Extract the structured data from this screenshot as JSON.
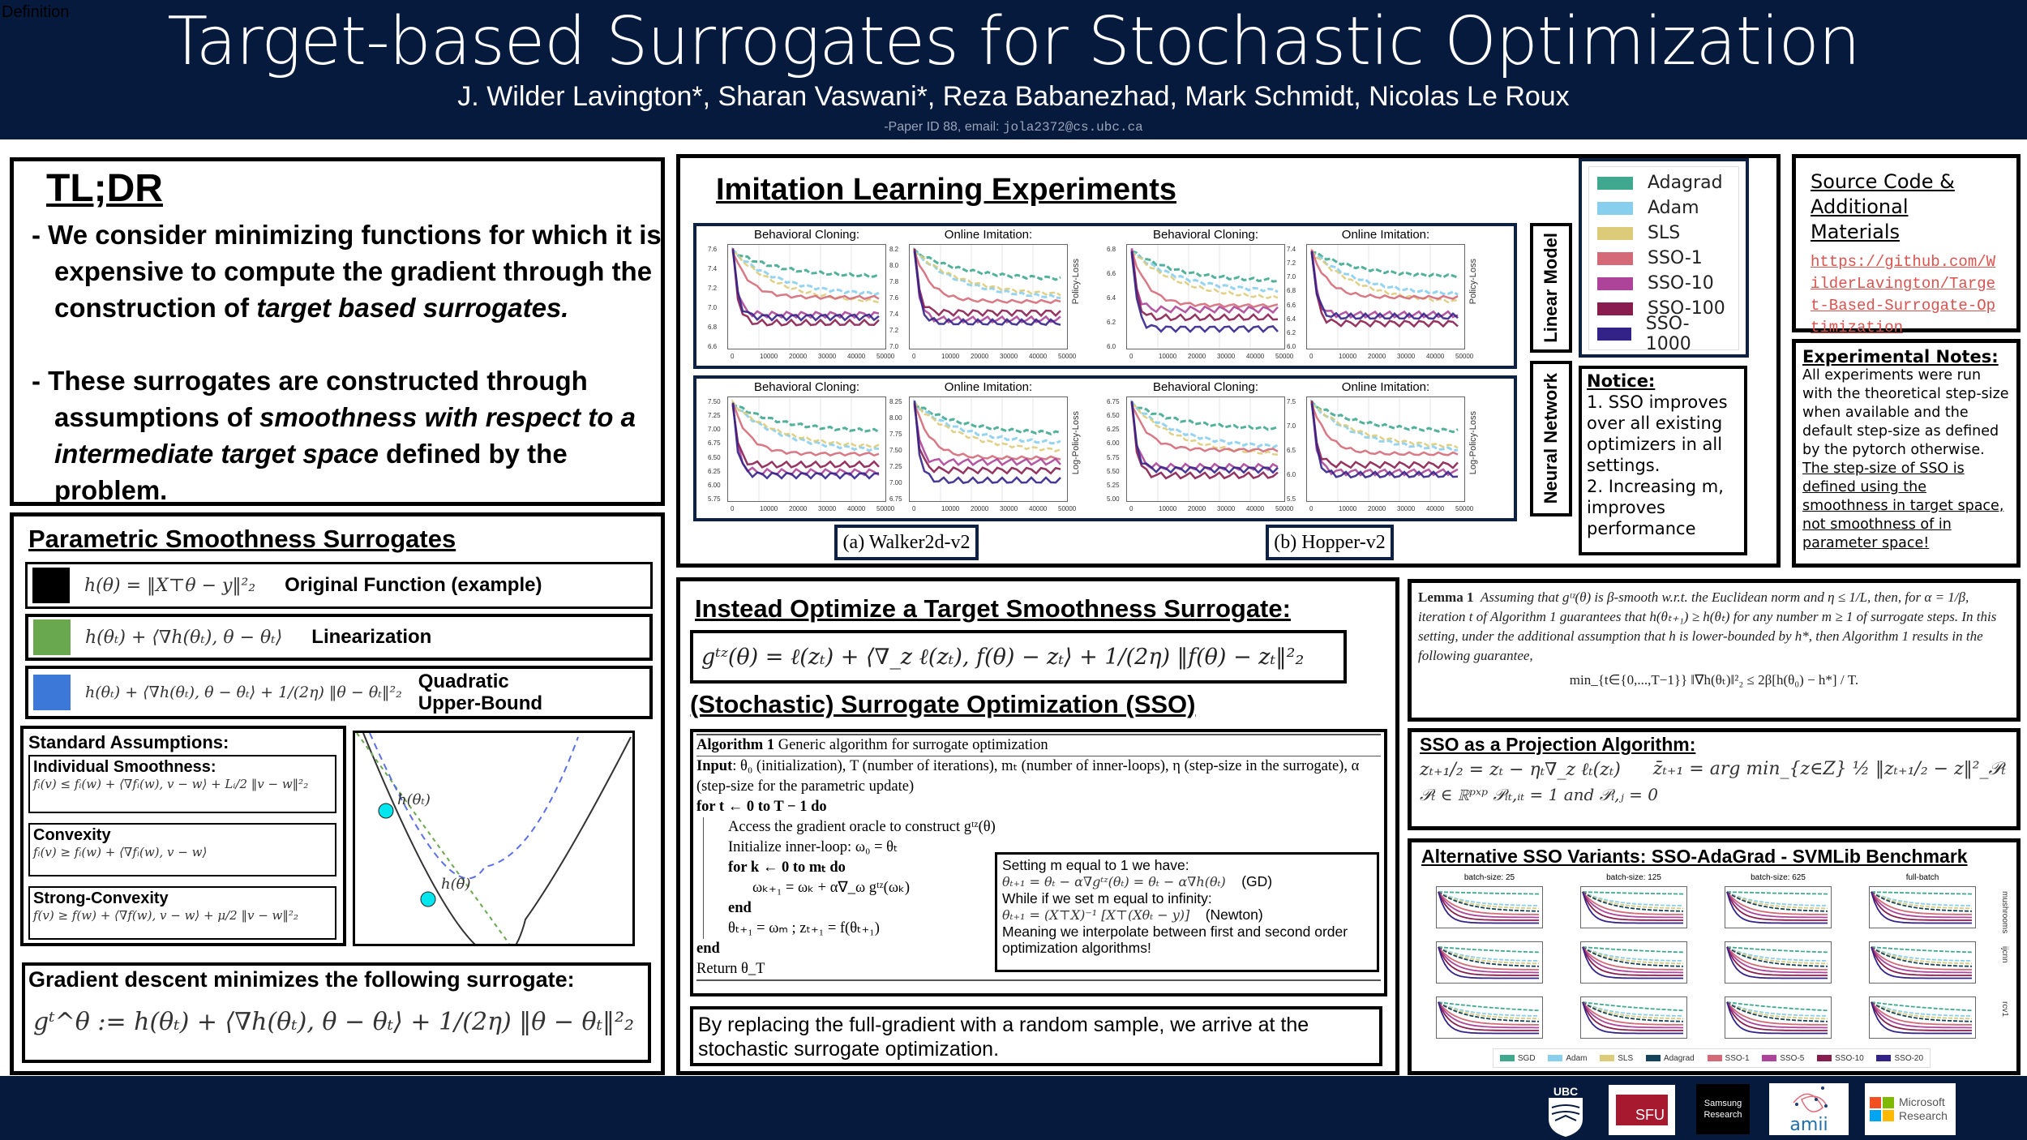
{
  "header": {
    "corner_label": "Definition",
    "title": "Target-based Surrogates for Stochastic Optimization",
    "authors": "J. Wilder Lavington*, Sharan Vaswani*, Reza Babanezhad, Mark Schmidt, Nicolas Le Roux",
    "paper_id": "-Paper ID 88, email: ",
    "email": "jola2372@cs.ubc.ca"
  },
  "tldr": {
    "title": "TL;DR",
    "bullet1_a": "We consider minimizing functions for which it is expensive to compute the gradient through the construction of ",
    "bullet1_b": "target based surrogates.",
    "bullet2_a": "These surrogates are constructed through assumptions of ",
    "bullet2_b": "smoothness with respect to a intermediate target space",
    "bullet2_c": " defined by the problem."
  },
  "parametric": {
    "title": "Parametric Smoothness Surrogates",
    "rows": [
      {
        "formula": "h(θ) = ‖X⊤θ − y‖²₂",
        "label": "Original Function (example)",
        "color": "#000000"
      },
      {
        "formula": "h(θₜ) + ⟨∇h(θₜ), θ − θₜ⟩",
        "label": "Linearization",
        "color": "#6aa84f"
      },
      {
        "formula": "h(θₜ) + ⟨∇h(θₜ), θ − θₜ⟩ + 1/(2η) ‖θ − θₜ‖²₂",
        "label": "Quadratic Upper-Bound",
        "color": "#3c78d8"
      }
    ],
    "assumptions_title": "Standard Assumptions:",
    "assumptions": [
      {
        "name": "Individual Smoothness:",
        "formula": "fᵢ(v) ≤ fᵢ(w) + ⟨∇fᵢ(w), v − w⟩ + Lᵢ/2 ‖v − w‖²₂"
      },
      {
        "name": "Convexity",
        "formula": "fᵢ(v) ≥ fᵢ(w) + ⟨∇fᵢ(w), v − w⟩"
      },
      {
        "name": "Strong-Convexity",
        "formula": "f(v) ≥ f(w) + ⟨∇f(w), v − w⟩ + μ/2 ‖v − w‖²₂"
      }
    ],
    "plot_labels": {
      "point_t": "h(θₜ)",
      "point": "h(θ)"
    },
    "gd_title": "Gradient descent minimizes the following surrogate:",
    "gd_formula": "gᵗ^θ := h(θₜ) + ⟨∇h(θₜ), θ − θₜ⟩ + 1/(2η) ‖θ − θₜ‖²₂"
  },
  "imitation": {
    "title": "Imitation Learning Experiments",
    "subplot_titles": [
      "Behavioral Cloning:",
      "Online Imitation:",
      "Behavioral Cloning:",
      "Online Imitation:"
    ],
    "ylabel_linear": "Policy-Loss",
    "ylabel_nn": "Log-Policy-Loss",
    "xticks": [
      "0",
      "10000",
      "20000",
      "30000",
      "40000",
      "50000"
    ],
    "row_labels": [
      "Linear Model",
      "Neural Network"
    ],
    "captions": [
      "(a) Walker2d-v2",
      "(b) Hopper-v2"
    ],
    "yticks": [
      [
        "7.6",
        "7.4",
        "7.2",
        "7.0",
        "6.8",
        "6.6"
      ],
      [
        "8.2",
        "8.0",
        "7.8",
        "7.6",
        "7.4",
        "7.2",
        "7.0"
      ],
      [
        "6.8",
        "6.6",
        "6.4",
        "6.2",
        "6.0"
      ],
      [
        "7.4",
        "7.2",
        "7.0",
        "6.8",
        "6.6",
        "6.4",
        "6.2",
        "6.0"
      ],
      [
        "7.50",
        "7.25",
        "7.00",
        "6.75",
        "6.50",
        "6.25",
        "6.00",
        "5.75"
      ],
      [
        "8.25",
        "8.00",
        "7.75",
        "7.50",
        "7.25",
        "7.00",
        "6.75"
      ],
      [
        "6.75",
        "6.50",
        "6.25",
        "6.00",
        "5.75",
        "5.50",
        "5.25",
        "5.00"
      ],
      [
        "7.5",
        "7.0",
        "6.5",
        "6.0",
        "5.5"
      ]
    ],
    "legend": [
      {
        "name": "Adagrad",
        "color": "#3fa88f"
      },
      {
        "name": "Adam",
        "color": "#88cfee"
      },
      {
        "name": "SLS",
        "color": "#dccb78"
      },
      {
        "name": "SSO-1",
        "color": "#d46a78"
      },
      {
        "name": "SSO-10",
        "color": "#ad4499"
      },
      {
        "name": "SSO-100",
        "color": "#8a1d50"
      },
      {
        "name": "SSO-1000",
        "color": "#332389"
      }
    ],
    "notice_title": "Notice:",
    "notice_lines": [
      "1. SSO improves over all existing optimizers in all settings.",
      "2. Increasing m, improves performance"
    ]
  },
  "source": {
    "title": "Source Code & Additional Materials",
    "link": "https://github.com/WilderLavington/Target-Based-Surrogate-Optimization"
  },
  "notes": {
    "title": "Experimental Notes:",
    "text": "All experiments were run with the theoretical step-size when available and  the default step-size as defined by the pytorch otherwise. ",
    "underlined": "The step-size of SSO is defined using the smoothness in target space, not smoothness of in parameter space!"
  },
  "target": {
    "title": "Instead Optimize a Target Smoothness Surrogate:",
    "formula": "gᵗᶻ(θ) = ℓ(zₜ) + ⟨∇_z ℓ(zₜ), f(θ) − zₜ⟩ + 1/(2η) ‖f(θ) − zₜ‖²₂",
    "sso_title": "(Stochastic) Surrogate Optimization (SSO)"
  },
  "algorithm": {
    "header_bold": "Algorithm 1",
    "header_text": " Generic algorithm for surrogate optimization",
    "input_bold": "Input",
    "input_text": ": θ₀ (initialization), T (number of iterations), mₜ (number of inner-loops), η (step-size in the surrogate), α (step-size for the parametric update)",
    "lines": [
      "for t ← 0 to T − 1 do",
      "Access the gradient oracle to construct gᵗᶻ(θ)",
      "Initialize inner-loop: ω₀ = θₜ",
      "for k ← 0 to mₜ do",
      "ωₖ₊₁ = ωₖ + α∇_ω gᵗᶻ(ωₖ)",
      "end",
      "θₜ₊₁ = ωₘ    ;    zₜ₊₁ = f(θₜ₊₁)",
      "end",
      "Return θ_T"
    ],
    "inset": {
      "l1": "Setting m equal to 1 we have:",
      "f1": "θₜ₊₁ = θₜ − α∇gᵗᶻ(θₜ) = θₜ − α∇h(θₜ)",
      "t1": "(GD)",
      "l2": "While if we set m equal to infinity:",
      "f2": "θₜ₊₁ = (X⊤X)⁻¹ [X⊤(Xθₜ − y)]",
      "t2": "(Newton)",
      "l3": "Meaning we interpolate between first and second order optimization algorithms!"
    },
    "footer": "By replacing the full-gradient with a random sample, we arrive at the stochastic surrogate optimization."
  },
  "lemma": {
    "bold": "Lemma 1",
    "text": "Assuming that gᵗᶻ(θ) is β-smooth w.r.t. the Euclidean norm and η ≤ 1/L, then, for α = 1/β, iteration t of Algorithm 1 guarantees that h(θₜ₊₁) ≥ h(θₜ) for any number m ≥ 1 of surrogate steps. In this setting, under the additional assumption that h is lower-bounded by h*, then Algorithm 1 results in the following guarantee,",
    "formula": "min_{t∈{0,...,T−1}} ‖∇h(θₜ)‖²₂ ≤ 2β[h(θ₀) − h*] / T."
  },
  "projection": {
    "title": "SSO as a Projection Algorithm:",
    "f1": "zₜ₊₁/₂ = zₜ − ηₜ∇_z ℓₜ(zₜ)",
    "f2": "z̄ₜ₊₁ = arg min_{z∈Z} ½ ‖zₜ₊₁/₂ − z‖²_𝒫ₜ",
    "f3": "𝒫ₜ ∈ ℝᵖˣᵖ     𝒫ᵢₜ,ᵢₜ = 1 and 𝒫ᵢ,ⱼ = 0"
  },
  "variants": {
    "title": "Alternative SSO Variants: SSO-AdaGrad - SVMLib Benchmark",
    "col_titles": [
      "batch-size: 25",
      "batch-size: 125",
      "batch-size: 625",
      "full-batch"
    ],
    "row_labels": [
      "mushrooms",
      "ijcnn",
      "rcv1"
    ],
    "legend": [
      {
        "name": "SGD",
        "color": "#3fa88f"
      },
      {
        "name": "Adam",
        "color": "#88cfee"
      },
      {
        "name": "SLS",
        "color": "#dccb78"
      },
      {
        "name": "Adagrad",
        "color": "#14435a"
      },
      {
        "name": "SSO-1",
        "color": "#d46a78"
      },
      {
        "name": "SSO-5",
        "color": "#ad4499"
      },
      {
        "name": "SSO-10",
        "color": "#8a1d50"
      },
      {
        "name": "SSO-20",
        "color": "#332389"
      }
    ]
  },
  "logos": {
    "ubc": "UBC",
    "sfu": "SFU",
    "samsung": "Samsung Research",
    "amii": "amii",
    "microsoft": "Microsoft Research"
  }
}
